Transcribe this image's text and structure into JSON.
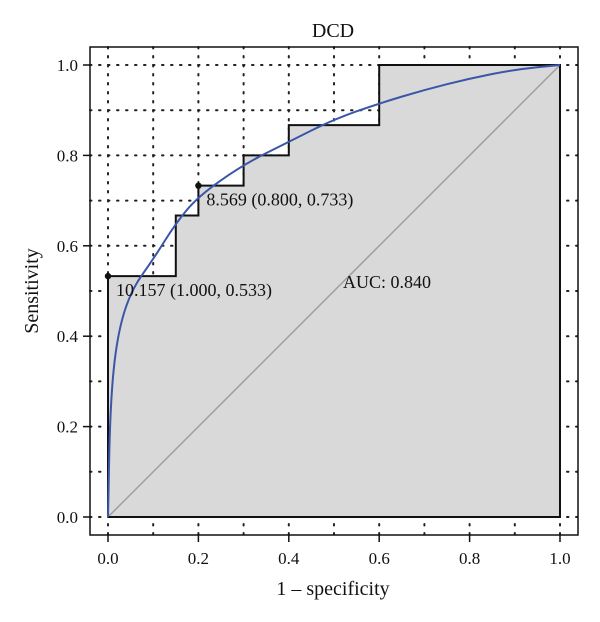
{
  "chart_data": {
    "type": "line",
    "title": "DCD",
    "xlabel": "1 – specificity",
    "ylabel": "Sensitivity",
    "xlim": [
      0,
      1
    ],
    "ylim": [
      0,
      1
    ],
    "xticks": [
      "0.0",
      "0.2",
      "0.4",
      "0.6",
      "0.8",
      "1.0"
    ],
    "yticks": [
      "0.0",
      "0.2",
      "0.4",
      "0.6",
      "0.8",
      "1.0"
    ],
    "grid": "dotted",
    "series": [
      {
        "role": "empirical-step",
        "color": "#111111",
        "x": [
          0,
          0,
          0.15,
          0.15,
          0.2,
          0.2,
          0.3,
          0.3,
          0.4,
          0.4,
          0.6,
          0.6,
          1.0
        ],
        "y": [
          0,
          0.533,
          0.533,
          0.667,
          0.667,
          0.733,
          0.733,
          0.8,
          0.8,
          0.867,
          0.867,
          1.0,
          1.0
        ]
      },
      {
        "role": "smoothed",
        "color": "#3a56a8",
        "x": [
          0,
          0.005,
          0.02,
          0.05,
          0.1,
          0.15,
          0.2,
          0.3,
          0.4,
          0.5,
          0.6,
          0.7,
          0.8,
          0.9,
          1.0
        ],
        "y": [
          0,
          0.25,
          0.4,
          0.5,
          0.57,
          0.65,
          0.71,
          0.78,
          0.83,
          0.88,
          0.915,
          0.945,
          0.97,
          0.99,
          1.0
        ]
      },
      {
        "role": "diagonal",
        "color": "#9e9e9e",
        "x": [
          0,
          1
        ],
        "y": [
          0,
          1
        ]
      }
    ],
    "points": [
      {
        "x": 0.0,
        "y": 0.533,
        "label": "10.157 (1.000, 0.533)"
      },
      {
        "x": 0.2,
        "y": 0.733,
        "label": "8.569 (0.800, 0.733)"
      }
    ],
    "annotations": [
      {
        "x": 0.52,
        "y": 0.5,
        "text": "AUC: 0.840"
      }
    ],
    "auc_fill": "#d9d9d9"
  }
}
